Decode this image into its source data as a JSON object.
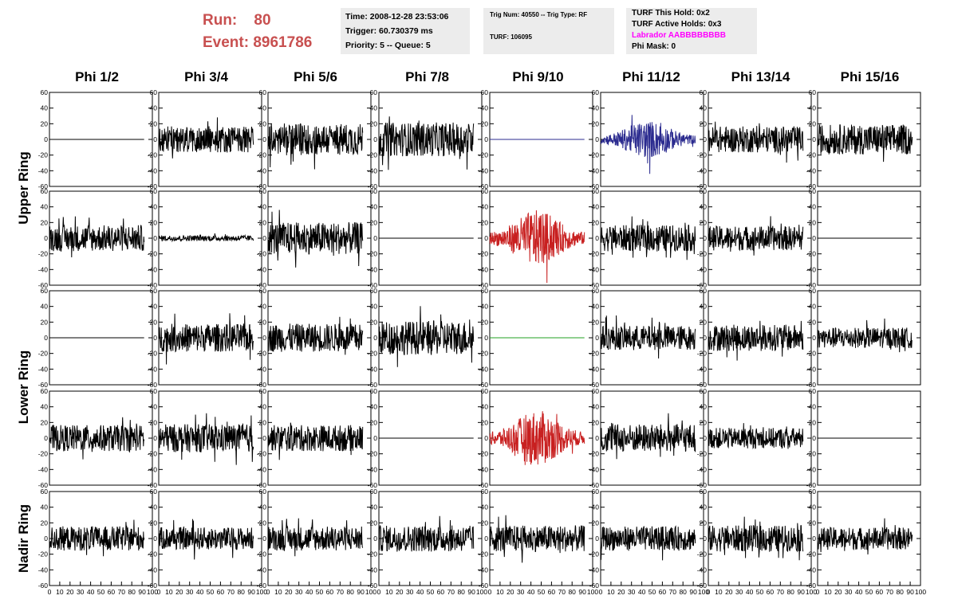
{
  "header": {
    "run_label": "Run:",
    "run_value": "80",
    "event_label": "Event:",
    "event_value": "8961786",
    "time": "Time: 2008-12-28 23:53:06",
    "trigger": "Trigger: 60.730379 ms",
    "priority": "Priority: 5 -- Queue: 5",
    "trig_num": "Trig Num: 40550 -- Trig Type: RF",
    "turf": "TURF: 106095",
    "turf_this_hold": "TURF This Hold: 0x2",
    "turf_active_holds": "TURF Active Holds: 0x3",
    "labrador": "Labrador AABBBBBBBB",
    "phi_mask": "Phi Mask: 0"
  },
  "columns": [
    "Phi 1/2",
    "Phi 3/4",
    "Phi 5/6",
    "Phi 7/8",
    "Phi 9/10",
    "Phi 11/12",
    "Phi 13/14",
    "Phi 15/16"
  ],
  "rings": [
    "Upper Ring",
    "Lower Ring",
    "Nadir Ring"
  ],
  "chart_data": {
    "type": "line",
    "grid": false,
    "xlim": [
      0,
      100
    ],
    "ylim": [
      -60,
      60
    ],
    "x_ticks": [
      0,
      10,
      20,
      30,
      40,
      50,
      60,
      70,
      80,
      90,
      100
    ],
    "y_ticks": [
      -60,
      -40,
      -20,
      0,
      20,
      40,
      60
    ],
    "colors": {
      "default": "#000000",
      "blue": "#2b2b8f",
      "red": "#c82020",
      "green": "#20a020"
    },
    "panels": [
      [
        {
          "amp": 0,
          "color": "default"
        },
        {
          "amp": 14,
          "color": "default"
        },
        {
          "amp": 17,
          "color": "default"
        },
        {
          "amp": 18,
          "color": "default"
        },
        {
          "amp": 0,
          "color": "blue"
        },
        {
          "amp": 15,
          "color": "blue",
          "burst": true
        },
        {
          "amp": 14,
          "color": "default"
        },
        {
          "amp": 16,
          "color": "default"
        }
      ],
      [
        {
          "amp": 14,
          "color": "default"
        },
        {
          "amp": 3,
          "color": "default"
        },
        {
          "amp": 17,
          "color": "default"
        },
        {
          "amp": 0,
          "color": "default"
        },
        {
          "amp": 22,
          "color": "red",
          "burst": true
        },
        {
          "amp": 14,
          "color": "default"
        },
        {
          "amp": 13,
          "color": "default"
        },
        {
          "amp": 0,
          "color": "default"
        }
      ],
      [
        {
          "amp": 0,
          "color": "default"
        },
        {
          "amp": 15,
          "color": "default"
        },
        {
          "amp": 15,
          "color": "default"
        },
        {
          "amp": 18,
          "color": "default"
        },
        {
          "amp": 0,
          "color": "green"
        },
        {
          "amp": 13,
          "color": "default"
        },
        {
          "amp": 14,
          "color": "default"
        },
        {
          "amp": 11,
          "color": "default"
        }
      ],
      [
        {
          "amp": 14,
          "color": "default"
        },
        {
          "amp": 15,
          "color": "default"
        },
        {
          "amp": 14,
          "color": "default"
        },
        {
          "amp": 0,
          "color": "default"
        },
        {
          "amp": 22,
          "color": "red",
          "burst": true
        },
        {
          "amp": 15,
          "color": "default"
        },
        {
          "amp": 11,
          "color": "default"
        },
        {
          "amp": 0,
          "color": "default"
        }
      ],
      [
        {
          "amp": 13,
          "color": "default"
        },
        {
          "amp": 12,
          "color": "default"
        },
        {
          "amp": 13,
          "color": "default"
        },
        {
          "amp": 14,
          "color": "default"
        },
        {
          "amp": 14,
          "color": "default"
        },
        {
          "amp": 13,
          "color": "default"
        },
        {
          "amp": 14,
          "color": "default"
        },
        {
          "amp": 12,
          "color": "default"
        }
      ]
    ]
  }
}
